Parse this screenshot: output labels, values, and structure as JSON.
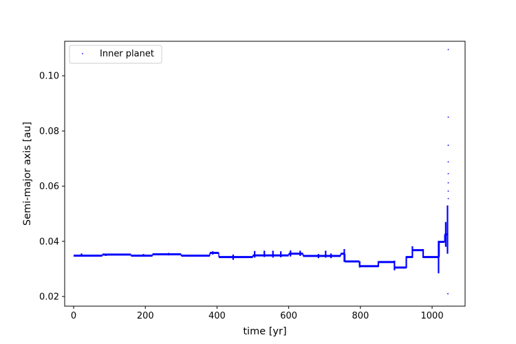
{
  "chart_data": {
    "type": "scatter",
    "title": "",
    "xlabel": "time [yr]",
    "ylabel": "Semi-major axis [au]",
    "xlim": [
      -25,
      1092
    ],
    "ylim": [
      0.0165,
      0.1125
    ],
    "xticks": [
      0,
      200,
      400,
      600,
      800,
      1000
    ],
    "xtick_labels": [
      "0",
      "200",
      "400",
      "600",
      "800",
      "1000"
    ],
    "yticks": [
      0.02,
      0.04,
      0.06,
      0.08,
      0.1
    ],
    "ytick_labels": [
      "0.02",
      "0.04",
      "0.06",
      "0.08",
      "0.10"
    ],
    "grid": false,
    "legend": {
      "position": "top-left",
      "entries": [
        "Inner planet"
      ]
    },
    "series": [
      {
        "name": "Inner planet",
        "color": "#0000ff",
        "marker": "point",
        "segments": [
          {
            "x": [
              0,
              80
            ],
            "y": 0.0348
          },
          {
            "x": [
              80,
              160
            ],
            "y": 0.0352
          },
          {
            "x": [
              160,
              220
            ],
            "y": 0.0348
          },
          {
            "x": [
              220,
              300
            ],
            "y": 0.0353
          },
          {
            "x": [
              300,
              380
            ],
            "y": 0.0348
          },
          {
            "x": [
              380,
              405
            ],
            "y": 0.0358
          },
          {
            "x": [
              405,
              500
            ],
            "y": 0.0343
          },
          {
            "x": [
              500,
              600
            ],
            "y": 0.0349
          },
          {
            "x": [
              600,
              640
            ],
            "y": 0.0355
          },
          {
            "x": [
              640,
              745
            ],
            "y": 0.0347
          },
          {
            "x": [
              745,
              757
            ],
            "y": 0.0355
          },
          {
            "x": [
              757,
              797
            ],
            "y": 0.0327
          },
          {
            "x": [
              797,
              850
            ],
            "y": 0.031
          },
          {
            "x": [
              850,
              895
            ],
            "y": 0.0325
          },
          {
            "x": [
              895,
              928
            ],
            "y": 0.0305
          },
          {
            "x": [
              928,
              945
            ],
            "y": 0.0343
          },
          {
            "x": [
              945,
              975
            ],
            "y": 0.0368
          },
          {
            "x": [
              975,
              1020
            ],
            "y": 0.0343
          },
          {
            "x": [
              1020,
              1035
            ],
            "y": 0.0398
          },
          {
            "x": [
              1035,
              1045
            ],
            "y": 0.0425
          }
        ],
        "spikes": [
          {
            "x": 22,
            "low": 0.0346,
            "high": 0.0356
          },
          {
            "x": 90,
            "low": 0.0347,
            "high": 0.0355
          },
          {
            "x": 195,
            "low": 0.0346,
            "high": 0.0354
          },
          {
            "x": 265,
            "low": 0.0349,
            "high": 0.0358
          },
          {
            "x": 388,
            "low": 0.0352,
            "high": 0.0364
          },
          {
            "x": 445,
            "low": 0.0333,
            "high": 0.0352
          },
          {
            "x": 505,
            "low": 0.0341,
            "high": 0.0365
          },
          {
            "x": 532,
            "low": 0.0343,
            "high": 0.0366
          },
          {
            "x": 556,
            "low": 0.0341,
            "high": 0.0366
          },
          {
            "x": 578,
            "low": 0.0342,
            "high": 0.0364
          },
          {
            "x": 605,
            "low": 0.0345,
            "high": 0.0367
          },
          {
            "x": 632,
            "low": 0.0347,
            "high": 0.0366
          },
          {
            "x": 683,
            "low": 0.0339,
            "high": 0.0354
          },
          {
            "x": 703,
            "low": 0.0341,
            "high": 0.0366
          },
          {
            "x": 718,
            "low": 0.0339,
            "high": 0.0356
          },
          {
            "x": 755,
            "low": 0.0325,
            "high": 0.0372
          },
          {
            "x": 798,
            "low": 0.0305,
            "high": 0.0328
          },
          {
            "x": 850,
            "low": 0.0307,
            "high": 0.0328
          },
          {
            "x": 895,
            "low": 0.0295,
            "high": 0.033
          },
          {
            "x": 928,
            "low": 0.0303,
            "high": 0.0346
          },
          {
            "x": 945,
            "low": 0.034,
            "high": 0.0382
          },
          {
            "x": 975,
            "low": 0.034,
            "high": 0.0372
          },
          {
            "x": 1018,
            "low": 0.0284,
            "high": 0.0402
          },
          {
            "x": 1038,
            "low": 0.038,
            "high": 0.047
          },
          {
            "x": 1043,
            "low": 0.0355,
            "high": 0.053
          }
        ],
        "outliers": [
          {
            "x": 1045,
            "y": 0.1095
          },
          {
            "x": 1045,
            "y": 0.085
          },
          {
            "x": 1045,
            "y": 0.0748
          },
          {
            "x": 1045,
            "y": 0.0688
          },
          {
            "x": 1045,
            "y": 0.0645
          },
          {
            "x": 1045,
            "y": 0.0612
          },
          {
            "x": 1045,
            "y": 0.0582
          },
          {
            "x": 1045,
            "y": 0.0555
          },
          {
            "x": 1044,
            "y": 0.021
          }
        ]
      }
    ]
  }
}
